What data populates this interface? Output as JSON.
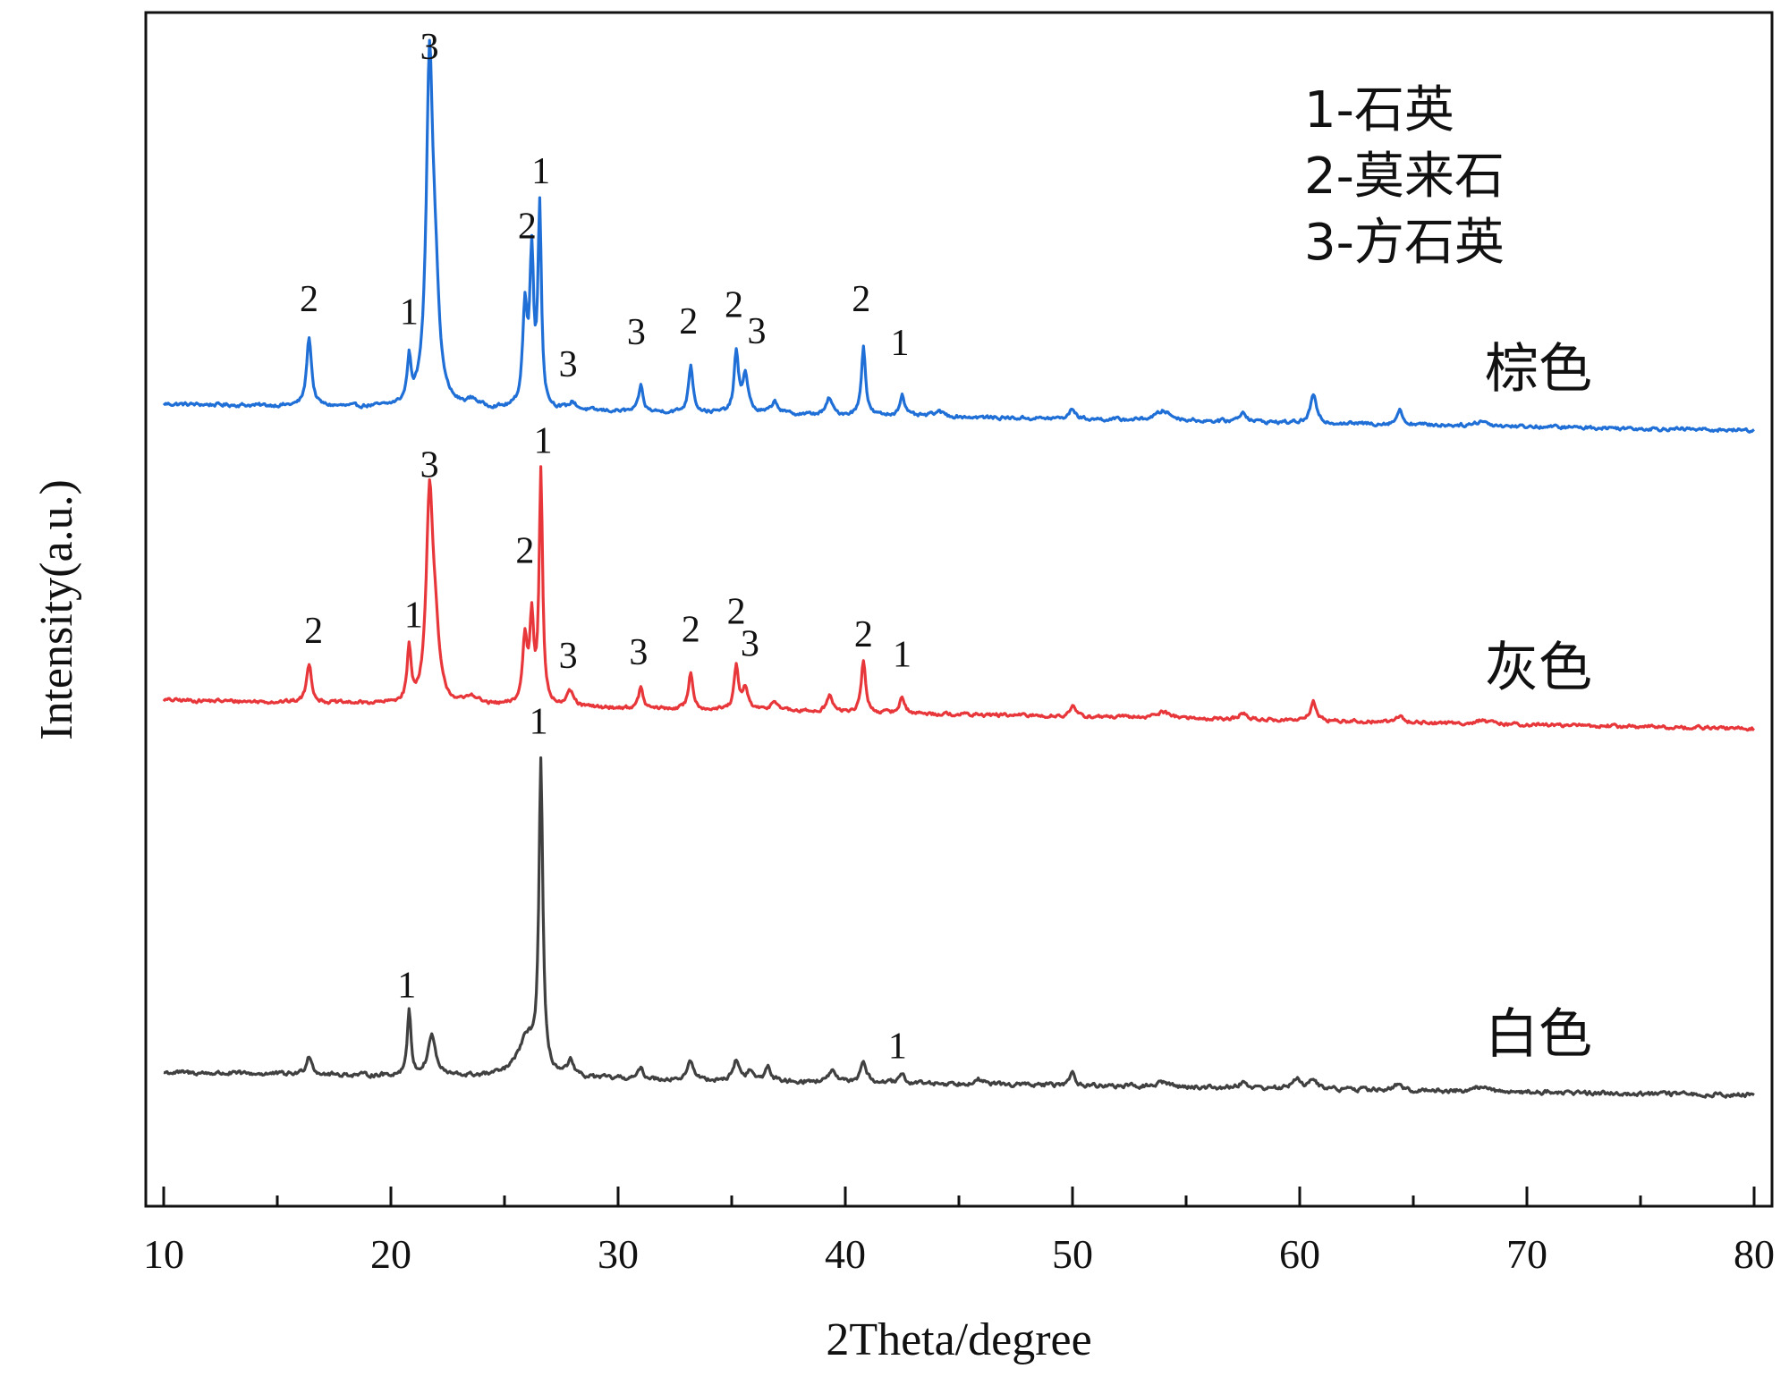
{
  "chart_data": {
    "type": "line",
    "xlabel": "2Theta/degree",
    "ylabel": "Intensity(a.u.)",
    "xlim": [
      10,
      80
    ],
    "ylim": [
      0,
      100
    ],
    "xticks": [
      10,
      20,
      30,
      40,
      50,
      60,
      70,
      80
    ],
    "y_tick_labels": "none",
    "grid": false,
    "legend": {
      "placement": "top-right",
      "entries": [
        "1-石英",
        "2-莫来石",
        "3-方石英"
      ]
    },
    "series": [
      {
        "name": "棕色",
        "color": "#1f6fd6",
        "baseline_start": 67.2,
        "baseline_end": 65.0,
        "noise": 0.25,
        "peaks": [
          {
            "x": 16.4,
            "h": 5.8,
            "w": 0.13
          },
          {
            "x": 20.8,
            "h": 3.6,
            "w": 0.1
          },
          {
            "x": 21.7,
            "h": 27.8,
            "w": 0.17
          },
          {
            "x": 21.95,
            "h": 8.0,
            "w": 0.2
          },
          {
            "x": 23.6,
            "h": 0.6,
            "w": 0.3
          },
          {
            "x": 25.9,
            "h": 8.2,
            "w": 0.12
          },
          {
            "x": 26.2,
            "h": 12.5,
            "w": 0.1
          },
          {
            "x": 26.55,
            "h": 16.6,
            "w": 0.09
          },
          {
            "x": 28.0,
            "h": 0.6,
            "w": 0.2
          },
          {
            "x": 31.0,
            "h": 2.2,
            "w": 0.11
          },
          {
            "x": 33.2,
            "h": 4.0,
            "w": 0.12
          },
          {
            "x": 35.2,
            "h": 5.0,
            "w": 0.11
          },
          {
            "x": 35.6,
            "h": 3.2,
            "w": 0.15
          },
          {
            "x": 36.9,
            "h": 1.0,
            "w": 0.18
          },
          {
            "x": 39.3,
            "h": 1.4,
            "w": 0.15
          },
          {
            "x": 40.8,
            "h": 5.8,
            "w": 0.11
          },
          {
            "x": 42.5,
            "h": 1.8,
            "w": 0.13
          },
          {
            "x": 44.1,
            "h": 0.4,
            "w": 0.3
          },
          {
            "x": 50.0,
            "h": 0.9,
            "w": 0.15
          },
          {
            "x": 54.0,
            "h": 0.8,
            "w": 0.4
          },
          {
            "x": 57.5,
            "h": 0.8,
            "w": 0.2
          },
          {
            "x": 60.6,
            "h": 2.4,
            "w": 0.15
          },
          {
            "x": 64.4,
            "h": 1.2,
            "w": 0.15
          },
          {
            "x": 68.0,
            "h": 0.4,
            "w": 0.3
          }
        ]
      },
      {
        "name": "灰色",
        "color": "#e8373b",
        "baseline_start": 42.4,
        "baseline_end": 40.0,
        "noise": 0.25,
        "peaks": [
          {
            "x": 16.4,
            "h": 3.3,
            "w": 0.13
          },
          {
            "x": 20.8,
            "h": 4.5,
            "w": 0.1
          },
          {
            "x": 21.7,
            "h": 16.8,
            "w": 0.17
          },
          {
            "x": 21.95,
            "h": 5.0,
            "w": 0.2
          },
          {
            "x": 23.6,
            "h": 0.7,
            "w": 0.3
          },
          {
            "x": 25.9,
            "h": 5.5,
            "w": 0.12
          },
          {
            "x": 26.2,
            "h": 7.0,
            "w": 0.1
          },
          {
            "x": 26.6,
            "h": 19.6,
            "w": 0.09
          },
          {
            "x": 27.9,
            "h": 1.2,
            "w": 0.18
          },
          {
            "x": 31.0,
            "h": 1.8,
            "w": 0.11
          },
          {
            "x": 33.2,
            "h": 3.1,
            "w": 0.12
          },
          {
            "x": 35.2,
            "h": 3.6,
            "w": 0.11
          },
          {
            "x": 35.6,
            "h": 1.8,
            "w": 0.15
          },
          {
            "x": 36.9,
            "h": 0.8,
            "w": 0.2
          },
          {
            "x": 39.3,
            "h": 1.4,
            "w": 0.15
          },
          {
            "x": 40.8,
            "h": 4.4,
            "w": 0.11
          },
          {
            "x": 42.5,
            "h": 1.4,
            "w": 0.13
          },
          {
            "x": 50.0,
            "h": 0.8,
            "w": 0.15
          },
          {
            "x": 54.0,
            "h": 0.5,
            "w": 0.4
          },
          {
            "x": 57.5,
            "h": 0.5,
            "w": 0.2
          },
          {
            "x": 60.6,
            "h": 1.6,
            "w": 0.15
          },
          {
            "x": 64.4,
            "h": 0.6,
            "w": 0.15
          },
          {
            "x": 68.0,
            "h": 0.3,
            "w": 0.3
          }
        ]
      },
      {
        "name": "白色",
        "color": "#404040",
        "baseline_start": 11.2,
        "baseline_end": 9.3,
        "noise": 0.3,
        "peaks": [
          {
            "x": 16.4,
            "h": 1.6,
            "w": 0.15
          },
          {
            "x": 20.8,
            "h": 5.4,
            "w": 0.1
          },
          {
            "x": 21.8,
            "h": 3.4,
            "w": 0.2
          },
          {
            "x": 26.0,
            "h": 3.2,
            "w": 0.5
          },
          {
            "x": 26.6,
            "h": 25.5,
            "w": 0.1
          },
          {
            "x": 27.9,
            "h": 1.2,
            "w": 0.15
          },
          {
            "x": 31.0,
            "h": 0.8,
            "w": 0.15
          },
          {
            "x": 33.2,
            "h": 1.6,
            "w": 0.15
          },
          {
            "x": 35.2,
            "h": 1.7,
            "w": 0.15
          },
          {
            "x": 35.8,
            "h": 0.8,
            "w": 0.15
          },
          {
            "x": 36.6,
            "h": 1.2,
            "w": 0.15
          },
          {
            "x": 39.4,
            "h": 1.0,
            "w": 0.15
          },
          {
            "x": 40.8,
            "h": 1.8,
            "w": 0.15
          },
          {
            "x": 42.5,
            "h": 0.6,
            "w": 0.15
          },
          {
            "x": 45.8,
            "h": 0.5,
            "w": 0.2
          },
          {
            "x": 50.0,
            "h": 1.0,
            "w": 0.15
          },
          {
            "x": 54.0,
            "h": 0.4,
            "w": 0.3
          },
          {
            "x": 57.5,
            "h": 0.5,
            "w": 0.2
          },
          {
            "x": 59.9,
            "h": 0.9,
            "w": 0.2
          },
          {
            "x": 60.6,
            "h": 0.7,
            "w": 0.2
          },
          {
            "x": 64.3,
            "h": 0.4,
            "w": 0.2
          },
          {
            "x": 68.0,
            "h": 0.4,
            "w": 0.3
          }
        ]
      }
    ],
    "annotations": [
      {
        "text": "2",
        "x": 16.4,
        "y": 75.0
      },
      {
        "text": "1",
        "x": 20.8,
        "y": 73.9
      },
      {
        "text": "3",
        "x": 21.7,
        "y": 96.1
      },
      {
        "text": "2",
        "x": 26.0,
        "y": 81.1
      },
      {
        "text": "1",
        "x": 26.6,
        "y": 85.7
      },
      {
        "text": "3",
        "x": 27.8,
        "y": 69.5
      },
      {
        "text": "3",
        "x": 30.8,
        "y": 72.2
      },
      {
        "text": "2",
        "x": 33.1,
        "y": 73.1
      },
      {
        "text": "2",
        "x": 35.1,
        "y": 74.5
      },
      {
        "text": "3",
        "x": 36.1,
        "y": 72.3
      },
      {
        "text": "2",
        "x": 40.7,
        "y": 75.0
      },
      {
        "text": "1",
        "x": 42.4,
        "y": 71.3
      },
      {
        "text": "2",
        "x": 16.6,
        "y": 47.2
      },
      {
        "text": "1",
        "x": 21.0,
        "y": 48.5
      },
      {
        "text": "3",
        "x": 21.7,
        "y": 61.1
      },
      {
        "text": "2",
        "x": 25.9,
        "y": 53.9
      },
      {
        "text": "1",
        "x": 26.7,
        "y": 63.1
      },
      {
        "text": "3",
        "x": 27.8,
        "y": 45.1
      },
      {
        "text": "3",
        "x": 30.9,
        "y": 45.4
      },
      {
        "text": "2",
        "x": 33.2,
        "y": 47.3
      },
      {
        "text": "2",
        "x": 35.2,
        "y": 48.8
      },
      {
        "text": "3",
        "x": 35.8,
        "y": 46.1
      },
      {
        "text": "2",
        "x": 40.8,
        "y": 46.9
      },
      {
        "text": "1",
        "x": 42.5,
        "y": 45.2
      },
      {
        "text": "1",
        "x": 20.7,
        "y": 17.5
      },
      {
        "text": "1",
        "x": 26.5,
        "y": 39.6
      },
      {
        "text": "1",
        "x": 42.3,
        "y": 12.4
      }
    ]
  }
}
